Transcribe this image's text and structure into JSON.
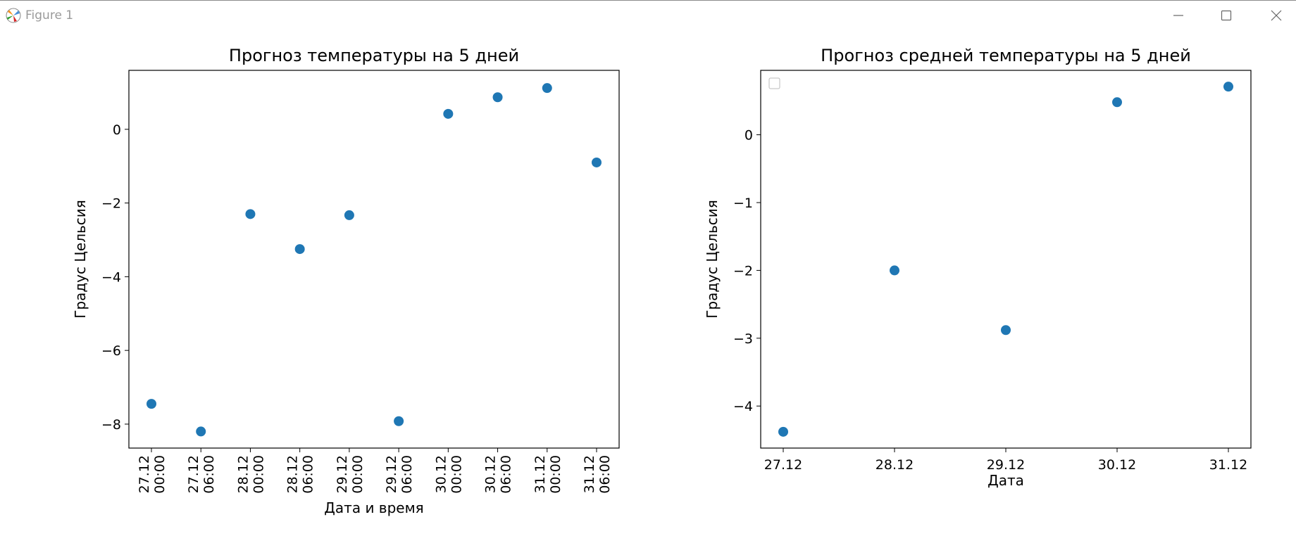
{
  "window": {
    "title": "Figure 1"
  },
  "colors": {
    "marker": "#1f77b4",
    "axes": "#000000"
  },
  "chart_data": [
    {
      "type": "scatter",
      "title": "Прогноз температуры на 5 дней",
      "xlabel": "Дата и время",
      "ylabel": "Градус Цельсия",
      "categories": [
        "27.12\n00:00",
        "27.12\n06:00",
        "28.12\n00:00",
        "28.12\n06:00",
        "29.12\n00:00",
        "29.12\n06:00",
        "30.12\n00:00",
        "30.12\n06:00",
        "31.12\n00:00",
        "31.12\n06:00"
      ],
      "values": [
        -7.45,
        -8.2,
        -2.3,
        -3.25,
        -2.33,
        -7.92,
        0.42,
        0.87,
        1.12,
        -0.9
      ],
      "yticks": [
        0,
        -2,
        -4,
        -6,
        -8
      ],
      "ylim": [
        -8.65,
        1.6
      ],
      "xtick_rotation": 90,
      "grid": false
    },
    {
      "type": "scatter",
      "title": "Прогноз средней температуры на 5 дней",
      "xlabel": "Дата",
      "ylabel": "Градус Цельсия",
      "categories": [
        "27.12",
        "28.12",
        "29.12",
        "30.12",
        "31.12"
      ],
      "values": [
        -4.38,
        -2.0,
        -2.88,
        0.48,
        0.71
      ],
      "yticks": [
        0,
        -1,
        -2,
        -3,
        -4
      ],
      "ylim": [
        -4.62,
        0.95
      ],
      "legend": {
        "placement": "top-left",
        "entries": []
      },
      "grid": false
    }
  ]
}
